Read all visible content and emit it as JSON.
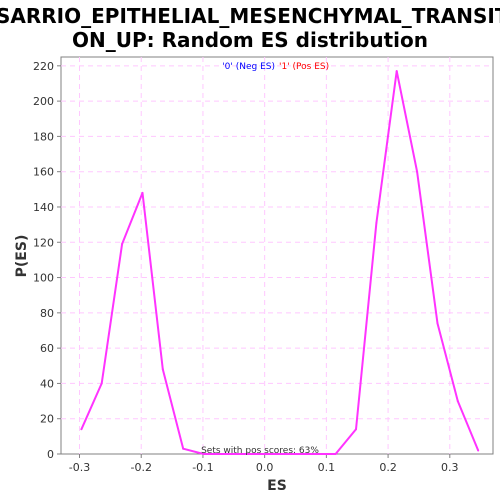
{
  "chart_data": {
    "type": "line",
    "title_lines": [
      "SARRIO_EPITHELIAL_MESENCHYMAL_TRANSITI",
      "ON_UP: Random ES distribution"
    ],
    "xlabel": "ES",
    "ylabel": "P(ES)",
    "xlim": [
      -0.33,
      0.37
    ],
    "ylim": [
      0,
      225
    ],
    "xticks": [
      -0.3,
      -0.2,
      -0.1,
      0.0,
      0.1,
      0.2,
      0.3
    ],
    "xtick_labels": [
      "-0.3",
      "-0.2",
      "-0.1",
      "0.0",
      "0.1",
      "0.2",
      "0.3"
    ],
    "yticks": [
      0,
      20,
      40,
      60,
      80,
      100,
      120,
      140,
      160,
      180,
      200,
      220
    ],
    "ytick_labels": [
      "0",
      "20",
      "40",
      "60",
      "80",
      "100",
      "120",
      "140",
      "160",
      "180",
      "200",
      "220"
    ],
    "grid": true,
    "legend": {
      "placement": "top-center",
      "items": [
        {
          "label": "'0' (Neg ES)",
          "color": "#0000ff"
        },
        {
          "label": "'1' (Pos ES)",
          "color": "#ff0000"
        }
      ]
    },
    "annotation": "Sets with pos scores: 63%",
    "series": [
      {
        "color": "#ff33ff",
        "x": [
          -0.297,
          -0.264,
          -0.231,
          -0.198,
          -0.165,
          -0.132,
          -0.099,
          -0.066,
          -0.033,
          0.0,
          0.033,
          0.066,
          0.099,
          0.115,
          0.148,
          0.181,
          0.214,
          0.247,
          0.28,
          0.313,
          0.346
        ],
        "y": [
          14,
          40,
          119,
          148,
          48,
          3,
          0,
          0,
          0,
          0,
          0,
          0,
          0,
          0,
          14,
          131,
          217,
          160,
          74,
          30,
          2
        ]
      }
    ]
  }
}
